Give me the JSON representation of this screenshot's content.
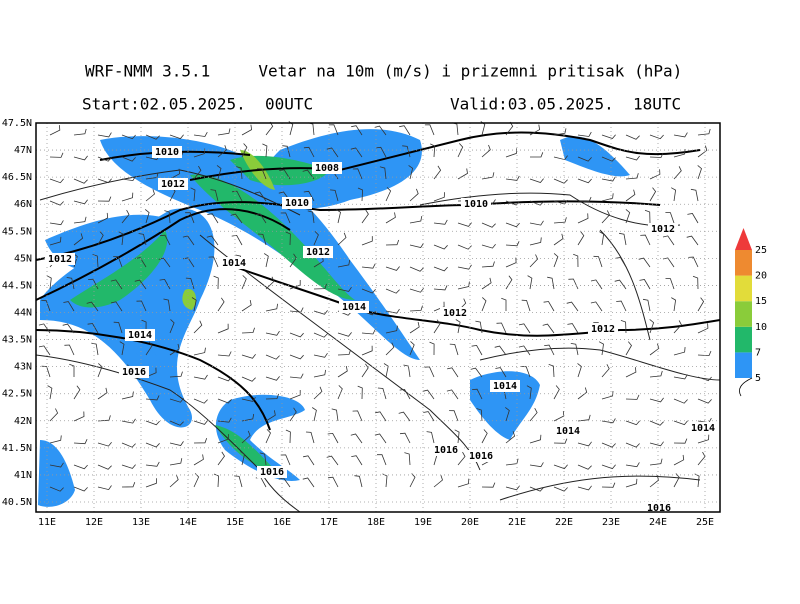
{
  "header": {
    "title": "WRF-NMM 3.5.1     Vetar na 10m (m/s) i prizemni pritisak (hPa)",
    "start": "Start:02.05.2025.  00UTC",
    "valid": "Valid:03.05.2025.  18UTC"
  },
  "map": {
    "lat_ticks": [
      "47.5N",
      "47N",
      "46.5N",
      "46N",
      "45.5N",
      "45N",
      "44.5N",
      "44N",
      "43.5N",
      "43N",
      "42.5N",
      "42N",
      "41.5N",
      "41N",
      "40.5N"
    ],
    "lon_ticks": [
      "11E",
      "12E",
      "13E",
      "14E",
      "15E",
      "16E",
      "17E",
      "18E",
      "19E",
      "20E",
      "21E",
      "22E",
      "23E",
      "24E",
      "25E"
    ],
    "isobar_labels": [
      1010,
      1012,
      1008,
      1010,
      1010,
      1012,
      1012,
      1014,
      1012,
      1014,
      1012,
      1012,
      1014,
      1016,
      1014,
      1014,
      1014,
      1016,
      1016,
      1016,
      1016
    ]
  },
  "colorbar": {
    "levels": [
      5,
      7,
      10,
      15,
      20,
      25
    ],
    "colors": [
      "#2e95f5",
      "#22b86a",
      "#8acc3a",
      "#e2dc3a",
      "#ee8a30",
      "#ee3a3a"
    ]
  }
}
